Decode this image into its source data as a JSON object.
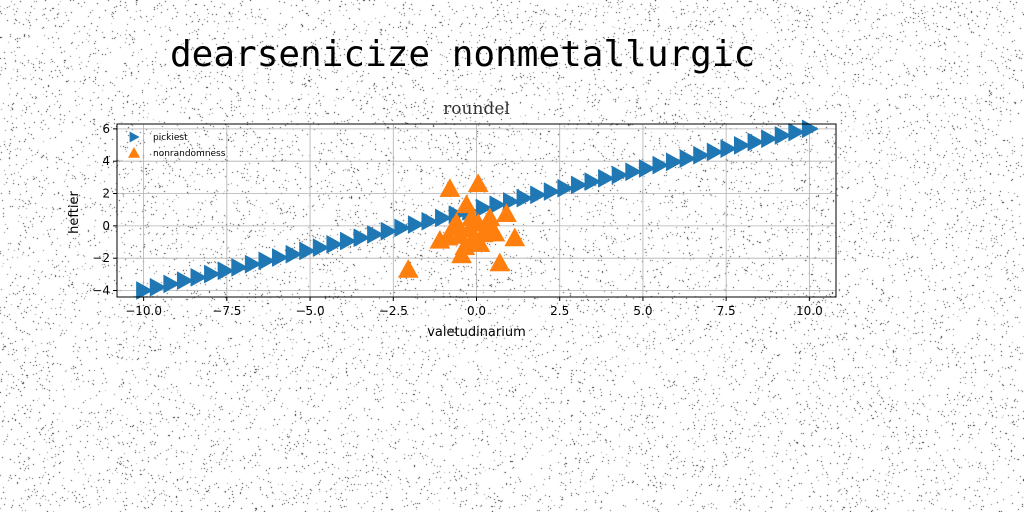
{
  "page": {
    "title": "dearsenicize nonmetallurgic"
  },
  "chart_data": {
    "type": "scatter",
    "title": "roundel",
    "xlabel": "valetudinarium",
    "ylabel": "heftier",
    "xlim": [
      -10.8,
      10.8
    ],
    "ylim": [
      -4.4,
      6.3
    ],
    "xticks": [
      -10.0,
      -7.5,
      -5.0,
      -2.5,
      0.0,
      2.5,
      5.0,
      7.5,
      10.0
    ],
    "xtick_labels": [
      "−10.0",
      "−7.5",
      "−5.0",
      "−2.5",
      "0.0",
      "2.5",
      "5.0",
      "7.5",
      "10.0"
    ],
    "yticks": [
      -4,
      -2,
      0,
      2,
      4,
      6
    ],
    "ytick_labels": [
      "−4",
      "−2",
      "0",
      "2",
      "4",
      "6"
    ],
    "grid": true,
    "legend_position": "top-left",
    "series": [
      {
        "name": "pickiest",
        "marker": "triangle-right",
        "color": "#1f77b4",
        "line": {
          "x_start": -10.0,
          "x_end": 10.0,
          "y_start": -4.0,
          "y_end": 6.0,
          "n_points": 50
        }
      },
      {
        "name": "nonrandomness",
        "marker": "triangle-up",
        "color": "#ff7f0e",
        "points": [
          [
            -2.05,
            -2.7
          ],
          [
            -0.8,
            2.3
          ],
          [
            0.05,
            2.6
          ],
          [
            -0.45,
            -1.8
          ],
          [
            0.7,
            -2.3
          ],
          [
            1.15,
            -0.75
          ],
          [
            0.9,
            0.75
          ],
          [
            0.4,
            0.5
          ],
          [
            -0.3,
            1.3
          ],
          [
            -0.15,
            0.5
          ],
          [
            0.05,
            0.15
          ],
          [
            -0.6,
            0.2
          ],
          [
            -0.2,
            -0.2
          ],
          [
            -1.1,
            -0.9
          ],
          [
            -0.85,
            -0.7
          ],
          [
            -0.5,
            -0.6
          ],
          [
            -0.15,
            -0.95
          ],
          [
            0.2,
            -0.5
          ],
          [
            0.55,
            -0.45
          ],
          [
            0.1,
            -1.1
          ],
          [
            -0.7,
            -0.1
          ],
          [
            0.35,
            -0.1
          ],
          [
            -0.35,
            -1.3
          ]
        ]
      }
    ]
  }
}
